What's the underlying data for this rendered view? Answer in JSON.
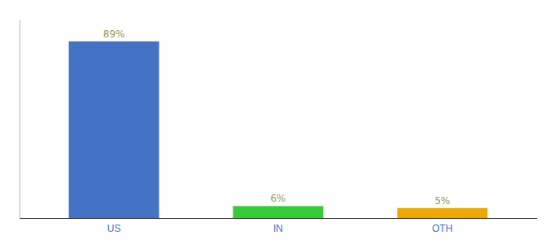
{
  "chart_data": {
    "type": "bar",
    "categories": [
      "US",
      "IN",
      "OTH"
    ],
    "values": [
      89,
      6,
      5
    ],
    "value_labels": [
      "89%",
      "6%",
      "5%"
    ],
    "colors": [
      "#4472c4",
      "#33cc33",
      "#f0a800"
    ],
    "ylim": [
      0,
      100
    ],
    "data_labels": true,
    "tick_labels": "x"
  }
}
